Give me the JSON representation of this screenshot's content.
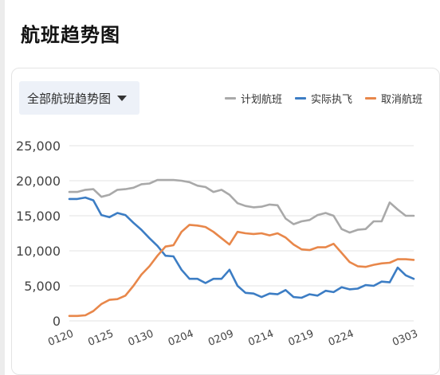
{
  "page": {
    "title": "航班趋势图"
  },
  "selector": {
    "label": "全部航班趋势图",
    "icon": "caret-down-icon"
  },
  "colors": {
    "planned": "#a9a9a9",
    "actual": "#3c7dc4",
    "cancelled": "#e8874a",
    "grid": "#e3e3e3",
    "axis_text": "#444444"
  },
  "chart_data": {
    "type": "line",
    "title": "",
    "xlabel": "",
    "ylabel": "",
    "ylim": [
      0,
      25000
    ],
    "y_ticks": [
      0,
      5000,
      10000,
      15000,
      20000,
      25000
    ],
    "y_tick_labels": [
      "0",
      "5,000",
      "10,000",
      "15,000",
      "20,000",
      "25,000"
    ],
    "x_tick_labels": [
      {
        "index": 0,
        "label": "0120"
      },
      {
        "index": 5,
        "label": "0125"
      },
      {
        "index": 10,
        "label": "0130"
      },
      {
        "index": 15,
        "label": "0204"
      },
      {
        "index": 20,
        "label": "0209"
      },
      {
        "index": 25,
        "label": "0214"
      },
      {
        "index": 30,
        "label": "0219"
      },
      {
        "index": 35,
        "label": "0224"
      },
      {
        "index": 43,
        "label": "0303"
      }
    ],
    "categories": [
      "0120",
      "0121",
      "0122",
      "0123",
      "0124",
      "0125",
      "0126",
      "0127",
      "0128",
      "0129",
      "0130",
      "0131",
      "0201",
      "0202",
      "0203",
      "0204",
      "0205",
      "0206",
      "0207",
      "0208",
      "0209",
      "0210",
      "0211",
      "0212",
      "0213",
      "0214",
      "0215",
      "0216",
      "0217",
      "0218",
      "0219",
      "0220",
      "0221",
      "0222",
      "0223",
      "0224",
      "0225",
      "0226",
      "0227",
      "0228",
      "0229",
      "0301",
      "0302",
      "0303"
    ],
    "legend_position": "top-right",
    "grid": true,
    "series": [
      {
        "name": "计划航班",
        "color": "#a9a9a9",
        "values": [
          18400,
          18400,
          18700,
          18800,
          17700,
          18000,
          18700,
          18800,
          19000,
          19500,
          19600,
          20100,
          20100,
          20100,
          20000,
          19800,
          19300,
          19100,
          18400,
          18700,
          18000,
          16800,
          16400,
          16200,
          16300,
          16600,
          16500,
          14600,
          13800,
          14200,
          14400,
          15100,
          15400,
          15000,
          13100,
          12600,
          13000,
          13100,
          14200,
          14200,
          16900,
          15900,
          15000,
          15000
        ]
      },
      {
        "name": "实际执飞",
        "color": "#3c7dc4",
        "values": [
          17400,
          17400,
          17600,
          17200,
          15100,
          14800,
          15400,
          15100,
          14000,
          13000,
          11800,
          10700,
          9300,
          9200,
          7300,
          6000,
          6000,
          5400,
          6000,
          6000,
          7300,
          5000,
          4000,
          3900,
          3400,
          3900,
          3800,
          4400,
          3400,
          3300,
          3800,
          3600,
          4300,
          4100,
          4800,
          4500,
          4600,
          5100,
          5000,
          5600,
          5500,
          7600,
          6500,
          6000
        ]
      },
      {
        "name": "取消航班",
        "color": "#e8874a",
        "values": [
          700,
          700,
          800,
          1400,
          2400,
          3000,
          3100,
          3600,
          5000,
          6600,
          7800,
          9300,
          10600,
          10800,
          12700,
          13700,
          13600,
          13400,
          12700,
          11800,
          10900,
          12700,
          12500,
          12400,
          12500,
          12200,
          12500,
          11900,
          10900,
          10200,
          10100,
          10500,
          10500,
          11000,
          9700,
          8400,
          7800,
          7700,
          8000,
          8200,
          8300,
          8800,
          8800,
          8700
        ]
      }
    ]
  }
}
